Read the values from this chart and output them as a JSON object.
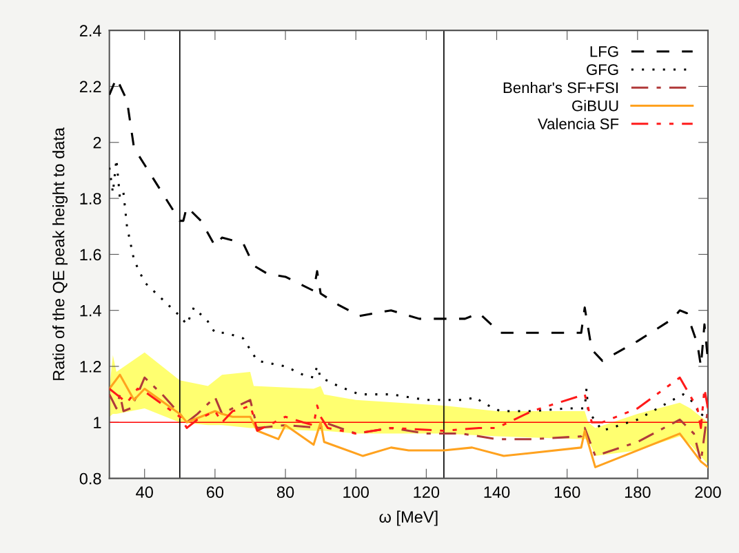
{
  "chart_data": {
    "type": "line",
    "xlabel": "ω [MeV]",
    "ylabel": "Ratio of the QE peak height to data",
    "xlim": [
      30,
      200
    ],
    "ylim": [
      0.8,
      2.4
    ],
    "xticks": [
      40,
      60,
      80,
      100,
      120,
      140,
      160,
      180,
      200
    ],
    "yticks": [
      0.8,
      1,
      1.2,
      1.4,
      1.6,
      1.8,
      2,
      2.2,
      2.4
    ],
    "grid": false,
    "legend": "top right",
    "marker": "none",
    "ref_lines": [
      {
        "axis": "y",
        "value": 1,
        "color": "#ff0000",
        "line_style": "solid"
      },
      {
        "axis": "x",
        "value": 50,
        "color": "#000000",
        "line_style": "solid"
      },
      {
        "axis": "x",
        "value": 125,
        "color": "#000000",
        "line_style": "solid"
      }
    ],
    "series": [
      {
        "type": "area",
        "color": "#ffff40",
        "x": [
          30,
          31,
          32,
          40,
          50,
          58,
          62,
          70,
          71,
          88,
          90,
          91,
          100,
          125,
          140,
          165,
          166,
          168,
          180,
          192,
          195,
          200
        ],
        "lower": [
          1.02,
          1.03,
          1.03,
          1.05,
          1.0,
          0.99,
          0.99,
          0.98,
          0.98,
          0.97,
          0.97,
          0.97,
          0.96,
          0.96,
          0.95,
          0.94,
          0.94,
          0.88,
          0.9,
          0.95,
          0.92,
          0.85
        ],
        "values": [
          null,
          null,
          null,
          null,
          null,
          null,
          null,
          null,
          null,
          null,
          null,
          null,
          null,
          null,
          null,
          null,
          null,
          null,
          null,
          null,
          null,
          null
        ],
        "upper": [
          1.12,
          1.24,
          1.18,
          1.25,
          1.15,
          1.13,
          1.17,
          1.18,
          1.13,
          1.12,
          1.13,
          1.1,
          1.08,
          1.06,
          1.04,
          1.04,
          1.0,
          0.98,
          1.03,
          1.07,
          1.05,
          1.0
        ]
      },
      {
        "name": "LFG",
        "color": "#000000",
        "line_style": "dashed",
        "x": [
          30,
          32,
          35,
          37,
          40,
          45,
          50,
          51,
          52,
          56,
          60,
          62,
          68,
          71,
          75,
          80,
          88,
          89,
          90,
          95,
          101,
          110,
          118,
          125,
          131,
          135,
          141,
          145,
          160,
          164,
          165,
          167,
          170,
          180,
          190,
          192,
          194,
          197,
          198,
          199,
          200
        ],
        "values": [
          2.17,
          2.23,
          2.15,
          1.98,
          1.92,
          1.82,
          1.72,
          1.72,
          1.77,
          1.72,
          1.63,
          1.66,
          1.64,
          1.56,
          1.53,
          1.52,
          1.47,
          1.54,
          1.46,
          1.42,
          1.38,
          1.4,
          1.37,
          1.37,
          1.37,
          1.39,
          1.32,
          1.32,
          1.32,
          1.32,
          1.41,
          1.26,
          1.22,
          1.29,
          1.37,
          1.4,
          1.39,
          1.28,
          1.2,
          1.35,
          1.22
        ]
      },
      {
        "name": "GFG",
        "color": "#000000",
        "line_style": "dotted",
        "x": [
          30,
          31,
          32,
          33,
          34,
          35,
          37,
          40,
          45,
          50,
          52,
          54,
          58,
          60,
          63,
          68,
          70,
          72,
          80,
          85,
          88,
          89,
          90,
          95,
          101,
          110,
          120,
          125,
          131,
          134,
          136,
          141,
          150,
          160,
          165,
          165.5,
          166,
          170,
          180,
          190,
          193,
          196,
          198,
          200
        ],
        "values": [
          1.91,
          1.82,
          1.94,
          1.8,
          1.82,
          1.7,
          1.58,
          1.5,
          1.44,
          1.38,
          1.35,
          1.41,
          1.36,
          1.32,
          1.32,
          1.3,
          1.26,
          1.22,
          1.2,
          1.17,
          1.16,
          1.2,
          1.16,
          1.13,
          1.1,
          1.1,
          1.08,
          1.08,
          1.08,
          1.09,
          1.07,
          1.04,
          1.04,
          1.05,
          1.05,
          1.12,
          1.04,
          0.97,
          1.01,
          1.08,
          1.1,
          1.07,
          1.02,
          1.06
        ]
      },
      {
        "name": "Benhar's SF+FSI",
        "color": "#b03a3a",
        "line_style": "dashdot",
        "x": [
          30,
          32,
          33,
          34,
          36,
          38,
          40,
          45,
          50,
          52,
          55,
          60,
          62,
          65,
          70,
          72,
          80,
          90,
          91,
          100,
          110,
          120,
          130,
          140,
          150,
          164,
          165,
          168,
          180,
          192,
          196,
          198,
          200
        ],
        "values": [
          1.1,
          1.05,
          1.1,
          1.04,
          1.05,
          1.1,
          1.16,
          1.1,
          1.03,
          1.0,
          1.03,
          1.09,
          1.03,
          1.05,
          1.08,
          0.98,
          0.99,
          0.98,
          1.0,
          0.96,
          0.98,
          0.96,
          0.96,
          0.94,
          0.94,
          0.95,
          0.98,
          0.88,
          0.93,
          1.01,
          0.96,
          0.86,
          1.05
        ]
      },
      {
        "name": "GiBUU",
        "color": "#ffa21f",
        "line_style": "solid",
        "x": [
          30,
          33,
          37,
          40,
          50,
          52,
          60,
          62,
          65,
          70,
          72,
          78,
          80,
          88,
          90,
          91,
          102,
          110,
          115,
          125,
          133,
          142,
          164,
          165,
          168,
          192,
          198,
          200
        ],
        "values": [
          1.12,
          1.17,
          1.08,
          1.12,
          1.03,
          1.0,
          1.04,
          1.03,
          1.02,
          1.02,
          0.97,
          0.94,
          0.99,
          0.92,
          1.0,
          0.93,
          0.88,
          0.91,
          0.9,
          0.9,
          0.91,
          0.88,
          0.91,
          0.97,
          0.84,
          0.96,
          0.86,
          0.84
        ]
      },
      {
        "name": "Valencia SF",
        "color": "#ff1a1a",
        "line_style": "dashdotdot",
        "x": [
          30,
          32,
          35,
          38,
          40,
          50,
          52,
          55,
          60,
          62,
          65,
          68,
          70,
          71,
          72,
          80,
          85,
          88,
          89,
          90,
          92,
          100,
          110,
          125,
          135,
          140,
          150,
          165,
          167,
          170,
          180,
          192,
          197,
          198,
          199,
          200
        ],
        "values": [
          1.12,
          1.1,
          1.07,
          1.12,
          1.11,
          1.02,
          0.98,
          1.01,
          1.04,
          1.0,
          1.04,
          1.05,
          1.06,
          1.02,
          0.97,
          1.02,
          1.0,
          0.99,
          1.06,
          1.02,
          0.98,
          0.96,
          0.98,
          0.97,
          0.98,
          0.98,
          1.04,
          1.1,
          1.0,
          1.0,
          1.05,
          1.16,
          1.05,
          0.98,
          1.12,
          1.05
        ]
      }
    ]
  }
}
